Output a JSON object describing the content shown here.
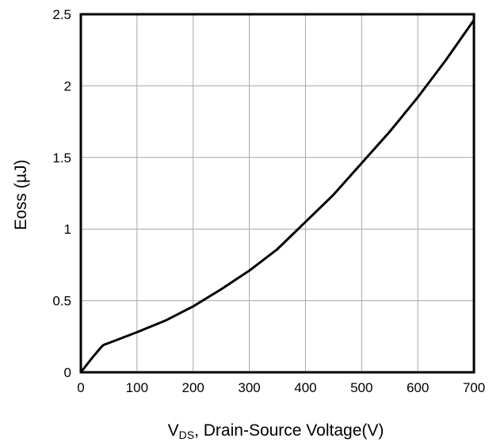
{
  "chart_data": {
    "type": "line",
    "title": "",
    "xlabel_main": "V",
    "xlabel_sub": "DS",
    "xlabel_rest": ", Drain-Source Voltage(V)",
    "ylabel": "Eoss (µJ)",
    "xlim": [
      0,
      700
    ],
    "ylim": [
      0,
      2.5
    ],
    "grid": true,
    "x_ticks": [
      0,
      100,
      200,
      300,
      400,
      500,
      600,
      700
    ],
    "y_ticks": [
      0,
      0.5,
      1,
      1.5,
      2,
      2.5
    ],
    "x_tick_labels": [
      "0",
      "100",
      "200",
      "300",
      "400",
      "500",
      "600",
      "700"
    ],
    "y_tick_labels": [
      "0",
      "0.5",
      "1",
      "1.5",
      "2",
      "2.5"
    ],
    "series": [
      {
        "x": [
          0,
          20,
          35,
          40,
          60,
          100,
          150,
          200,
          250,
          300,
          350,
          400,
          450,
          500,
          550,
          600,
          650,
          700
        ],
        "y": [
          0,
          0.1,
          0.17,
          0.19,
          0.22,
          0.28,
          0.36,
          0.46,
          0.58,
          0.71,
          0.86,
          1.05,
          1.24,
          1.46,
          1.68,
          1.92,
          2.18,
          2.46
        ]
      }
    ]
  }
}
